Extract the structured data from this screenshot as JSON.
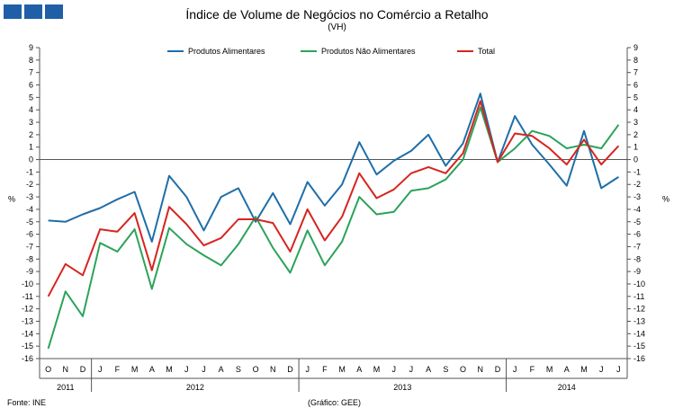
{
  "logo": {
    "color": "#1f5fa8"
  },
  "footer": {
    "source": "Fonte: INE",
    "credit": "(Gráfico: GEE)"
  },
  "chart_data": {
    "type": "line",
    "title": "Índice de Volume de Negócios no Comércio a Retalho",
    "subtitle": "(VH)",
    "ylabel_left": "%",
    "ylabel_right": "%",
    "ylim": [
      -16,
      9
    ],
    "yticks": [
      9,
      8,
      7,
      6,
      5,
      4,
      3,
      2,
      1,
      0,
      -1,
      -2,
      -3,
      -4,
      -5,
      -6,
      -7,
      -8,
      -9,
      -10,
      -11,
      -12,
      -13,
      -14,
      -15,
      -16
    ],
    "grid": false,
    "legend": "top",
    "categories": [
      "O",
      "N",
      "D",
      "J",
      "F",
      "M",
      "A",
      "M",
      "J",
      "J",
      "A",
      "S",
      "O",
      "N",
      "D",
      "J",
      "F",
      "M",
      "A",
      "M",
      "J",
      "J",
      "A",
      "S",
      "O",
      "N",
      "D",
      "J",
      "F",
      "M",
      "A",
      "M",
      "J",
      "J"
    ],
    "year_groups": [
      {
        "label": "2011",
        "count": 3
      },
      {
        "label": "2012",
        "count": 12
      },
      {
        "label": "2013",
        "count": 12
      },
      {
        "label": "2014",
        "count": 7
      }
    ],
    "series": [
      {
        "name": "Produtos Alimentares",
        "color": "#1f6ea8",
        "values": [
          -4.9,
          -5.0,
          -4.4,
          -3.9,
          -3.2,
          -2.6,
          -6.6,
          -1.3,
          -3.0,
          -5.7,
          -3.0,
          -2.3,
          -5.0,
          -2.7,
          -5.2,
          -1.8,
          -3.7,
          -2.0,
          1.4,
          -1.2,
          -0.1,
          0.7,
          2.0,
          -0.5,
          1.3,
          5.3,
          -0.2,
          3.5,
          1.2,
          -0.4,
          -2.1,
          2.3,
          -2.3,
          -1.4
        ]
      },
      {
        "name": "Produtos Não Alimentares",
        "color": "#2ba35a",
        "values": [
          -15.2,
          -10.6,
          -12.6,
          -6.7,
          -7.4,
          -5.6,
          -10.4,
          -5.5,
          -6.8,
          -7.7,
          -8.5,
          -6.8,
          -4.6,
          -7.1,
          -9.1,
          -5.7,
          -8.5,
          -6.6,
          -3.0,
          -4.4,
          -4.2,
          -2.5,
          -2.3,
          -1.6,
          0.0,
          4.2,
          -0.2,
          0.9,
          2.3,
          1.9,
          0.9,
          1.2,
          0.9,
          2.8
        ]
      },
      {
        "name": "Total",
        "color": "#d6251f",
        "values": [
          -11.0,
          -8.4,
          -9.3,
          -5.6,
          -5.8,
          -4.3,
          -8.9,
          -3.8,
          -5.2,
          -6.9,
          -6.3,
          -4.8,
          -4.8,
          -5.1,
          -7.4,
          -4.0,
          -6.5,
          -4.6,
          -1.1,
          -3.1,
          -2.4,
          -1.1,
          -0.6,
          -1.1,
          0.5,
          4.7,
          -0.2,
          2.1,
          1.9,
          0.9,
          -0.4,
          1.6,
          -0.4,
          1.1
        ]
      }
    ]
  }
}
